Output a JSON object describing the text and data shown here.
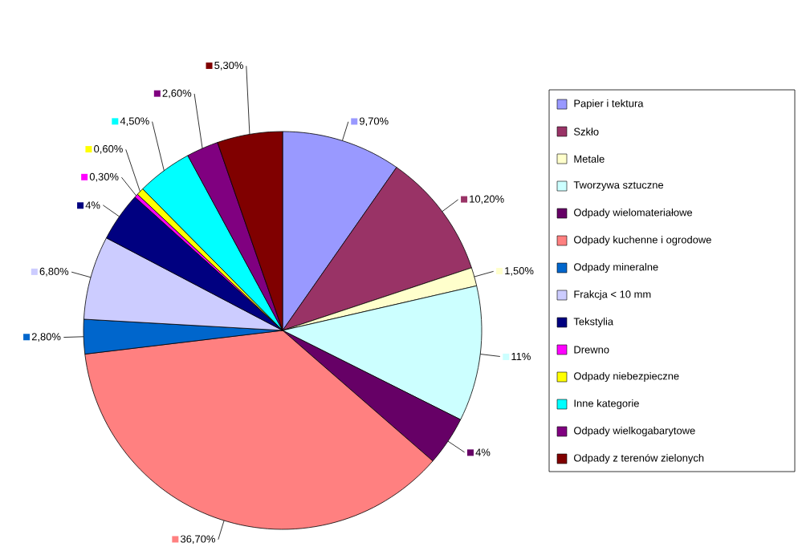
{
  "chart_data": {
    "type": "pie",
    "legend": "right",
    "categories": [
      "Papier i tektura",
      "Szkło",
      "Metale",
      "Tworzywa sztuczne",
      "Odpady wielomateriałowe",
      "Odpady kuchenne i ogrodowe",
      "Odpady mineralne",
      "Frakcja < 10 mm",
      "Tekstylia",
      "Drewno",
      "Odpady niebezpieczne",
      "Inne kategorie",
      "Odpady wielkogabarytowe",
      "Odpady z terenów zielonych"
    ],
    "values": [
      9.7,
      10.2,
      1.5,
      11,
      4,
      36.7,
      2.8,
      6.8,
      4,
      0.3,
      0.6,
      4.5,
      2.6,
      5.3
    ],
    "value_labels": [
      "9,70%",
      "10,20%",
      "1,50%",
      "11%",
      "4%",
      "36,70%",
      "2,80%",
      "6,80%",
      "4%",
      "0,30%",
      "0,60%",
      "4,50%",
      "2,60%",
      "5,30%"
    ],
    "colors": [
      "#9999ff",
      "#993366",
      "#ffffcc",
      "#ccffff",
      "#660066",
      "#ff8080",
      "#0066cc",
      "#ccccff",
      "#000080",
      "#ff00ff",
      "#ffff00",
      "#00ffff",
      "#800080",
      "#800000"
    ]
  }
}
